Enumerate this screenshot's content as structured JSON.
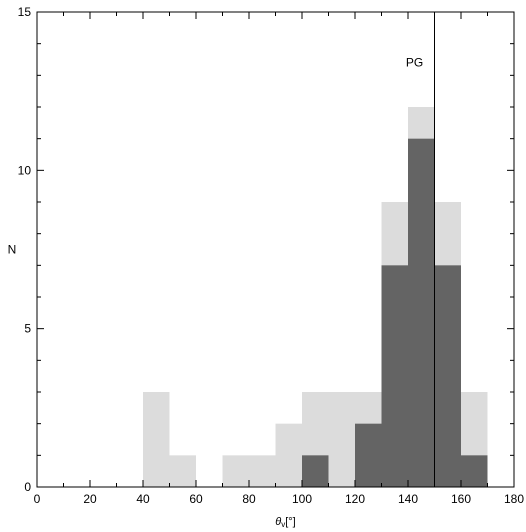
{
  "chart_data": {
    "type": "bar",
    "xlabel_symbol": "θ",
    "xlabel_subscript": "v",
    "xlabel_unit": "[°]",
    "ylabel": "N",
    "xlim": [
      0,
      180
    ],
    "ylim": [
      0,
      15
    ],
    "x_ticks": [
      0,
      20,
      40,
      60,
      80,
      100,
      120,
      140,
      160,
      180
    ],
    "y_ticks": [
      0,
      5,
      10,
      15
    ],
    "bin_width": 10,
    "bin_starts": [
      40,
      50,
      60,
      70,
      80,
      90,
      100,
      110,
      120,
      130,
      140,
      150,
      160
    ],
    "series": [
      {
        "values": [
          3,
          1,
          0,
          1,
          1,
          2,
          3,
          3,
          3,
          9,
          12,
          9,
          3
        ],
        "color": "#dcdcdc"
      },
      {
        "values": [
          0,
          0,
          0,
          0,
          0,
          0,
          1,
          0,
          2,
          7,
          11,
          7,
          1
        ],
        "color": "#646464"
      }
    ],
    "annotations": [
      {
        "type": "vline",
        "x": 150,
        "label": "PG",
        "label_y": 13.4
      }
    ],
    "grid": false
  }
}
